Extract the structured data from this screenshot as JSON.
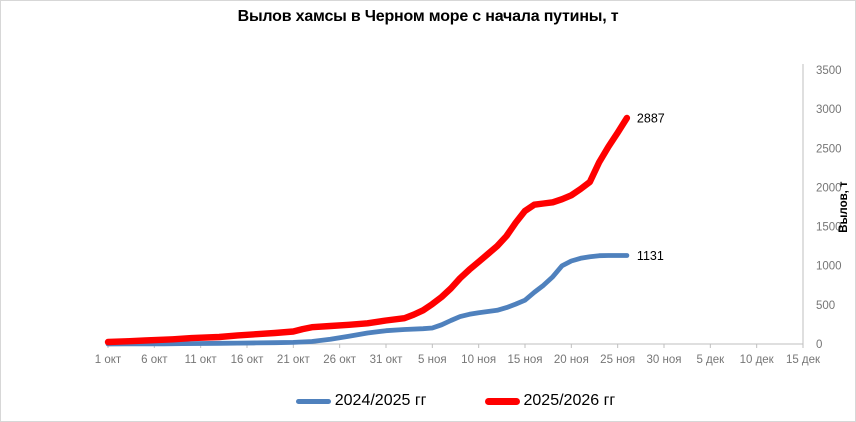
{
  "chart": {
    "title": "Вылов хамсы в Черном море с начала путины, т",
    "colors": {
      "axis_line": "#bfbfbf",
      "tick_label": "#767676",
      "title_text": "#000000",
      "series_2024_2025": "#4f81bd",
      "series_2025_2026": "#ff0000"
    }
  },
  "chart_data": {
    "type": "line",
    "title": "Вылов хамсы в Черном море с начала путины, т",
    "xlabel": "",
    "ylabel": "Вылов, т",
    "ylim": [
      0,
      3500
    ],
    "y_ticks": [
      0,
      500,
      1000,
      1500,
      2000,
      2500,
      3000,
      3500
    ],
    "y_axis_side": "right",
    "x_tick_labels": [
      "1 окт",
      "6 окт",
      "11 окт",
      "16 окт",
      "21 окт",
      "26 окт",
      "31 окт",
      "5 ноя",
      "10 ноя",
      "15 ноя",
      "20 ноя",
      "25 ноя",
      "30 ноя",
      "5 дек",
      "10 дек",
      "15 дек"
    ],
    "x_unit": "days_since_oct_1",
    "x_range_days": [
      0,
      75
    ],
    "x_tick_interval_days": 5,
    "grid": false,
    "legend_position": "bottom",
    "series": [
      {
        "name": "2024/2025 гг",
        "color": "#4f81bd",
        "end_label": "1131",
        "end_value": 1131,
        "points": [
          [
            0,
            0
          ],
          [
            2,
            1
          ],
          [
            4,
            2
          ],
          [
            6,
            3
          ],
          [
            8,
            5
          ],
          [
            10,
            7
          ],
          [
            12,
            9
          ],
          [
            14,
            12
          ],
          [
            16,
            14
          ],
          [
            18,
            16
          ],
          [
            20,
            20
          ],
          [
            22,
            32
          ],
          [
            24,
            60
          ],
          [
            26,
            100
          ],
          [
            28,
            140
          ],
          [
            30,
            170
          ],
          [
            32,
            185
          ],
          [
            34,
            195
          ],
          [
            35,
            205
          ],
          [
            36,
            245
          ],
          [
            37,
            300
          ],
          [
            38,
            350
          ],
          [
            39,
            380
          ],
          [
            40,
            400
          ],
          [
            41,
            415
          ],
          [
            42,
            430
          ],
          [
            43,
            465
          ],
          [
            44,
            510
          ],
          [
            45,
            560
          ],
          [
            46,
            660
          ],
          [
            47,
            750
          ],
          [
            48,
            860
          ],
          [
            49,
            1000
          ],
          [
            50,
            1060
          ],
          [
            51,
            1095
          ],
          [
            52,
            1115
          ],
          [
            53,
            1128
          ],
          [
            54,
            1131
          ],
          [
            55,
            1131
          ],
          [
            56,
            1131
          ]
        ]
      },
      {
        "name": "2025/2026 гг",
        "color": "#ff0000",
        "end_label": "2887",
        "end_value": 2887,
        "points": [
          [
            0,
            25
          ],
          [
            2,
            35
          ],
          [
            4,
            45
          ],
          [
            7,
            60
          ],
          [
            9,
            75
          ],
          [
            12,
            90
          ],
          [
            14,
            110
          ],
          [
            16,
            125
          ],
          [
            18,
            140
          ],
          [
            20,
            160
          ],
          [
            21,
            190
          ],
          [
            22,
            215
          ],
          [
            24,
            230
          ],
          [
            26,
            245
          ],
          [
            28,
            265
          ],
          [
            30,
            300
          ],
          [
            32,
            330
          ],
          [
            33,
            375
          ],
          [
            34,
            430
          ],
          [
            35,
            510
          ],
          [
            36,
            600
          ],
          [
            37,
            710
          ],
          [
            38,
            840
          ],
          [
            39,
            950
          ],
          [
            40,
            1050
          ],
          [
            41,
            1150
          ],
          [
            42,
            1250
          ],
          [
            43,
            1380
          ],
          [
            44,
            1550
          ],
          [
            45,
            1700
          ],
          [
            46,
            1780
          ],
          [
            47,
            1795
          ],
          [
            48,
            1810
          ],
          [
            49,
            1850
          ],
          [
            50,
            1900
          ],
          [
            51,
            1980
          ],
          [
            52,
            2070
          ],
          [
            53,
            2320
          ],
          [
            54,
            2520
          ],
          [
            55,
            2700
          ],
          [
            56,
            2887
          ]
        ]
      }
    ]
  }
}
